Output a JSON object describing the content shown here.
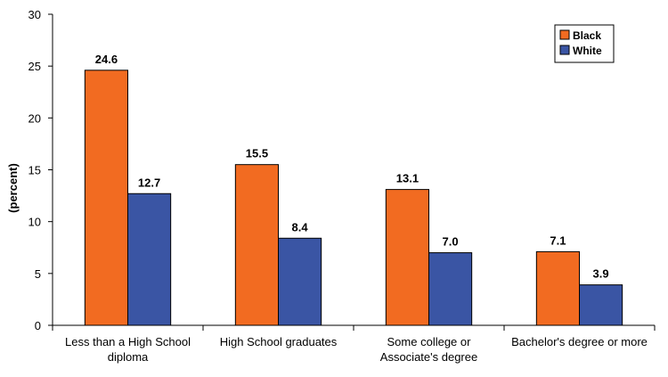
{
  "chart_data": {
    "type": "bar",
    "title": "",
    "xlabel": "",
    "ylabel": "(percent)",
    "ylim": [
      0,
      30
    ],
    "yticks": [
      0,
      5,
      10,
      15,
      20,
      25,
      30
    ],
    "categories": [
      [
        "Less than a High School",
        "diploma"
      ],
      [
        "High School graduates"
      ],
      [
        "Some college or",
        "Associate's degree"
      ],
      [
        "Bachelor's degree or more"
      ]
    ],
    "series": [
      {
        "name": "Black",
        "color": "#f26b21",
        "values": [
          24.6,
          15.5,
          13.1,
          7.1
        ],
        "labels": [
          "24.6",
          "15.5",
          "13.1",
          "7.1"
        ]
      },
      {
        "name": "White",
        "color": "#3a55a4",
        "values": [
          12.7,
          8.4,
          7.0,
          3.9
        ],
        "labels": [
          "12.7",
          "8.4",
          "7.0",
          "3.9"
        ]
      }
    ],
    "legend_position": "top-right",
    "grid": false
  }
}
